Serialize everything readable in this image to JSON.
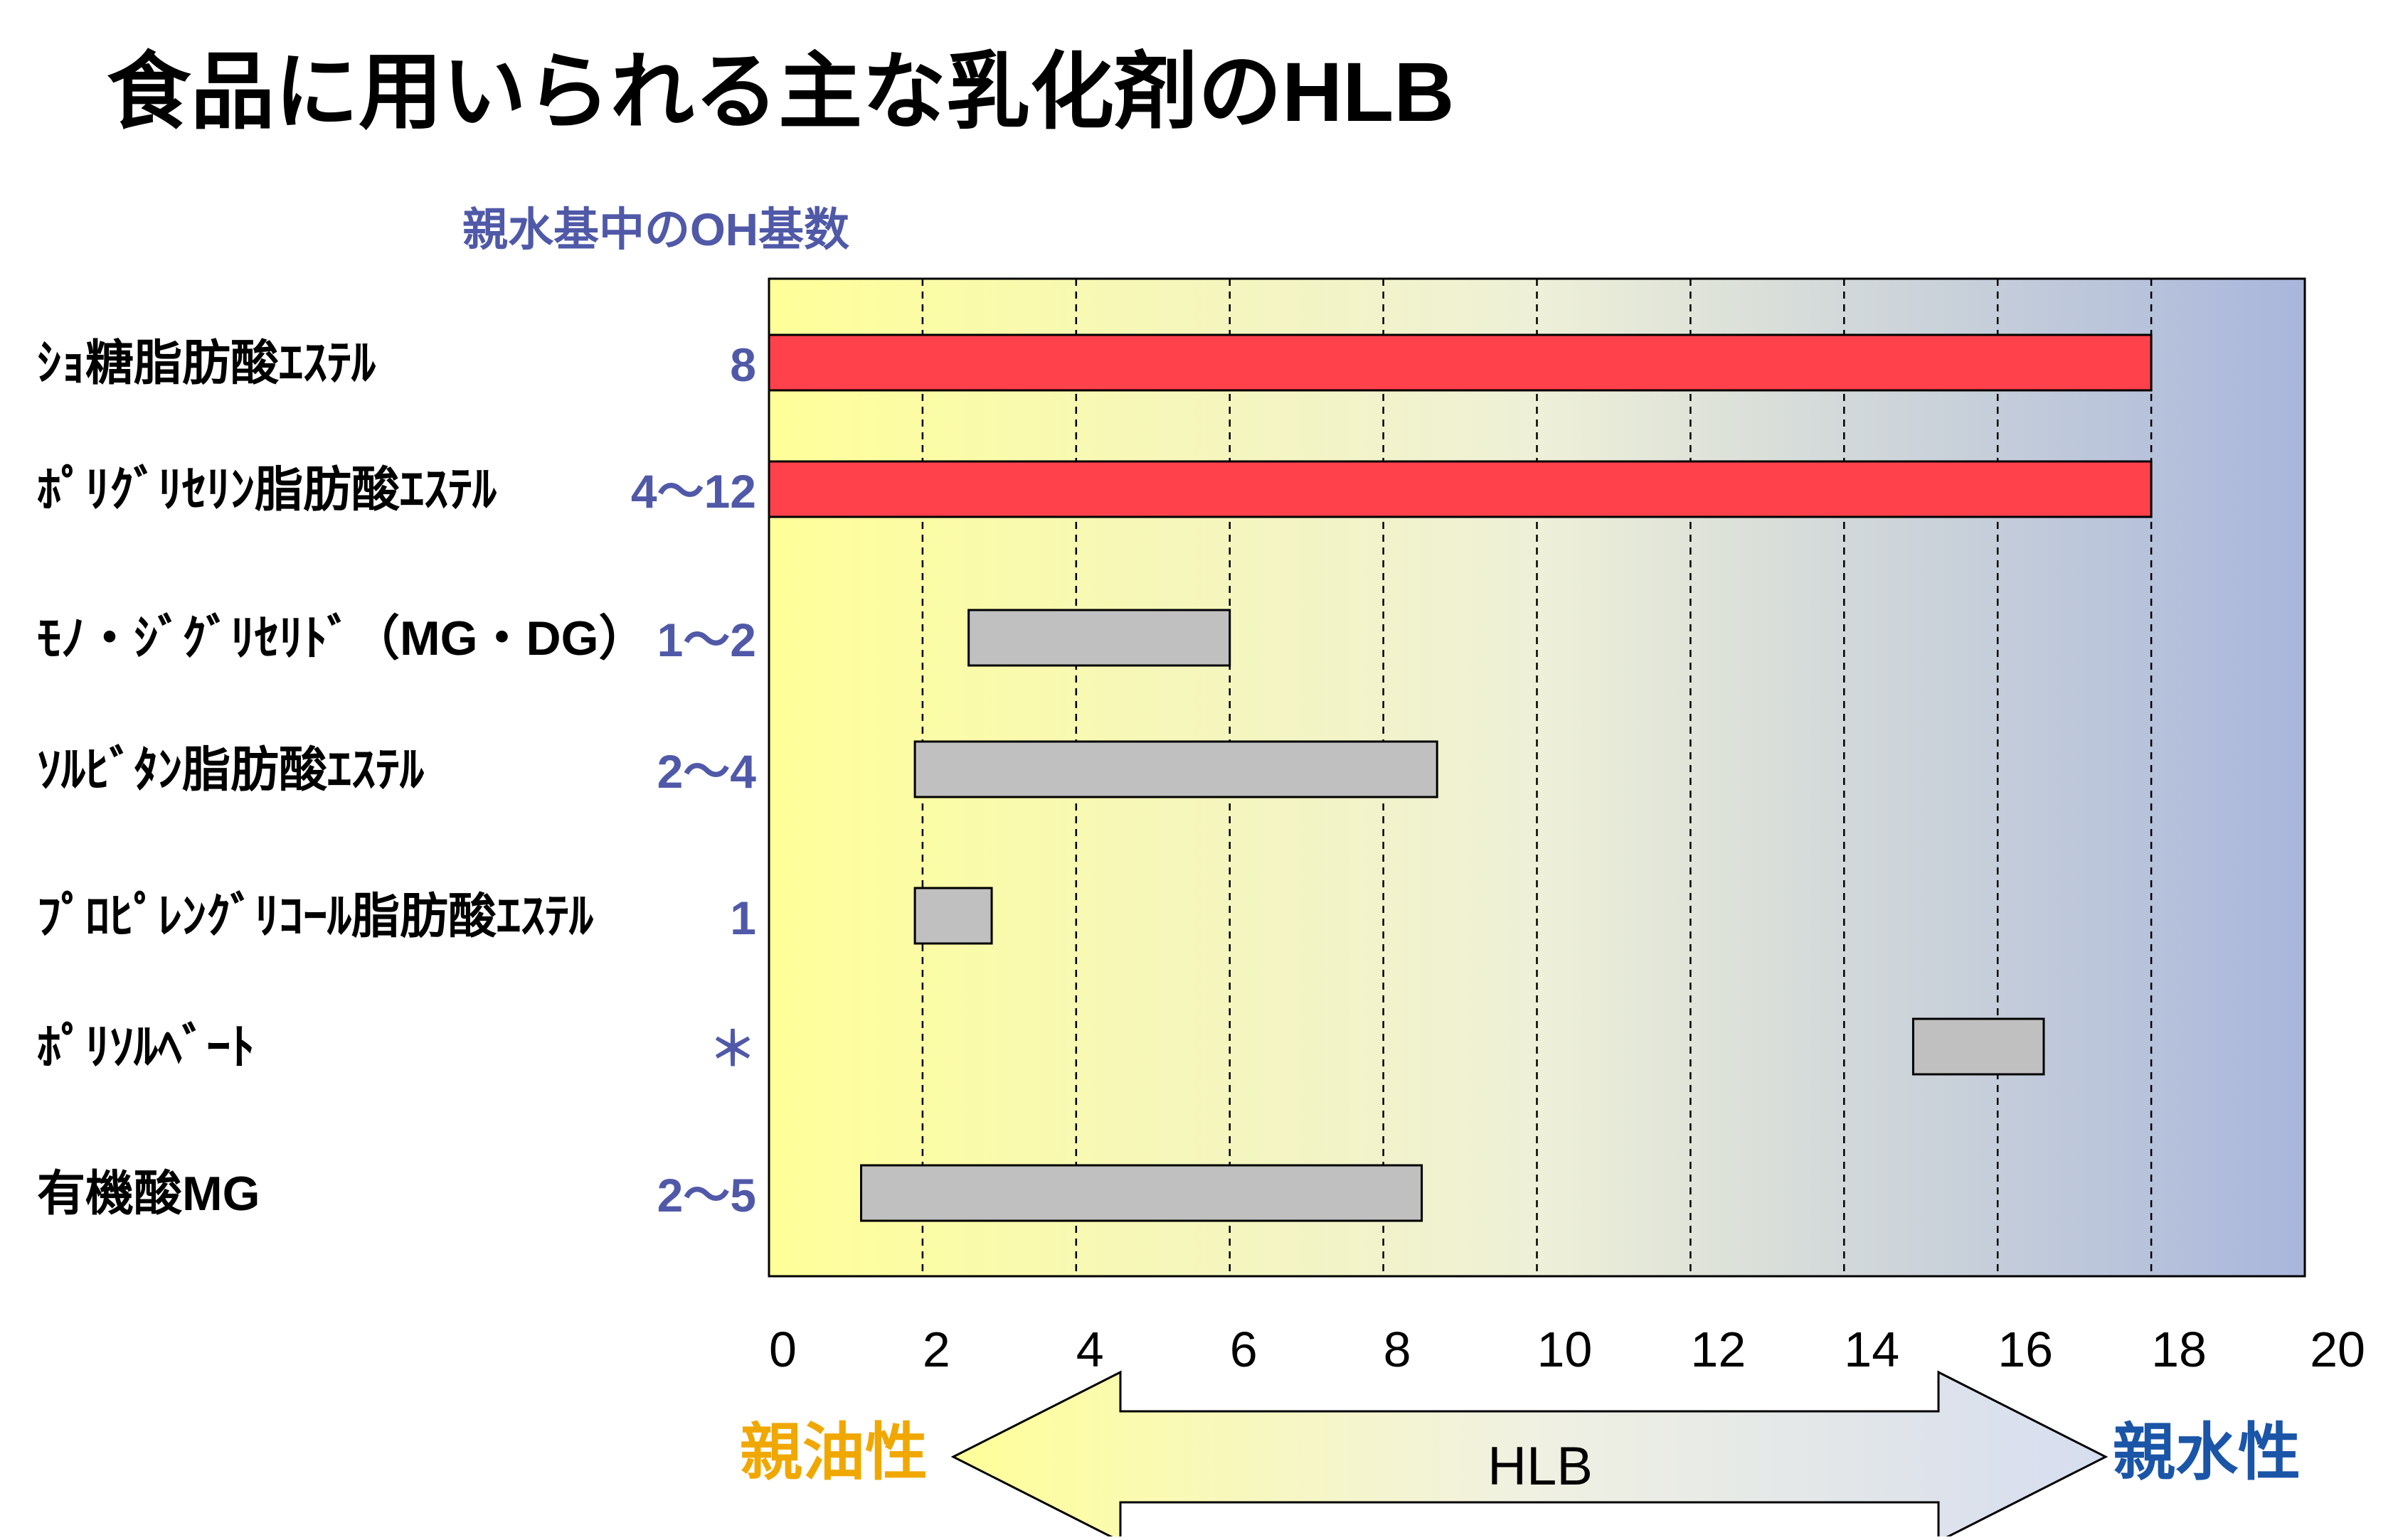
{
  "chart_data": {
    "type": "bar",
    "title": "食品に用いられる主な乳化剤のHLB",
    "oh_header": "親水基中のOH基数",
    "xlim": [
      0,
      20
    ],
    "x_ticks": [
      0,
      2,
      4,
      6,
      8,
      10,
      12,
      14,
      16,
      18,
      20
    ],
    "grid": "vertical dashed at every 2",
    "xlabel": "HLB",
    "left_end_label": "親油性",
    "right_end_label": "親水性",
    "categories": [
      "ｼｮ糖脂肪酸ｴｽﾃﾙ",
      "ﾎﾟﾘｸﾞﾘｾﾘﾝ脂肪酸ｴｽﾃﾙ",
      "ﾓﾉ・ｼﾞｸﾞﾘｾﾘﾄﾞ（MG・DG）",
      "ｿﾙﾋﾞﾀﾝ脂肪酸ｴｽﾃﾙ",
      "ﾌﾟﾛﾋﾟﾚﾝｸﾞﾘｺｰﾙ脂肪酸ｴｽﾃﾙ",
      "ﾎﾟﾘｿﾙﾍﾞｰﾄ",
      "有機酸MG"
    ],
    "oh_counts": [
      "8",
      "4〜12",
      "1〜2",
      "2〜4",
      "1",
      "＊",
      "2〜5"
    ],
    "ranges": [
      [
        0,
        18
      ],
      [
        0,
        18
      ],
      [
        2.6,
        6
      ],
      [
        1.9,
        8.7
      ],
      [
        1.9,
        2.9
      ],
      [
        14.9,
        16.6
      ],
      [
        1.2,
        8.5
      ]
    ],
    "colors": {
      "highlight_bar": "#ff414b",
      "normal_bar": "#c0c0c0",
      "oil_label": "#f0a800",
      "water_label": "#1a55a8",
      "oh_text": "#5059a8",
      "plot_left": "#ffff99",
      "plot_right": "#a9b6dc"
    },
    "highlighted": [
      0,
      1
    ]
  }
}
